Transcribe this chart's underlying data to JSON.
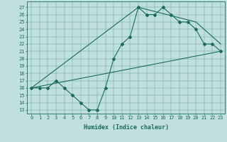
{
  "xlabel": "Humidex (Indice chaleur)",
  "background_color": "#c0e0e0",
  "line_color": "#1a6b5a",
  "xlim": [
    -0.5,
    23.5
  ],
  "ylim": [
    12.5,
    27.8
  ],
  "yticks": [
    13,
    14,
    15,
    16,
    17,
    18,
    19,
    20,
    21,
    22,
    23,
    24,
    25,
    26,
    27
  ],
  "xticks": [
    0,
    1,
    2,
    3,
    4,
    5,
    6,
    7,
    8,
    9,
    10,
    11,
    12,
    13,
    14,
    15,
    16,
    17,
    18,
    19,
    20,
    21,
    22,
    23
  ],
  "series1_x": [
    0,
    1,
    2,
    3,
    4,
    5,
    6,
    7,
    8,
    9,
    10,
    11,
    12,
    13,
    14,
    15,
    16,
    17,
    18,
    19,
    20,
    21,
    22,
    23
  ],
  "series1_y": [
    16,
    16,
    16,
    17,
    16,
    15,
    14,
    13,
    13,
    16,
    20,
    22,
    23,
    27,
    26,
    26,
    27,
    26,
    25,
    25,
    24,
    22,
    22,
    21
  ],
  "series2_x": [
    0,
    23
  ],
  "series2_y": [
    16,
    21
  ],
  "series3_x": [
    0,
    13,
    20,
    23
  ],
  "series3_y": [
    16,
    27,
    25,
    22
  ],
  "tick_fontsize": 5,
  "xlabel_fontsize": 6,
  "linewidth": 0.8,
  "markersize": 2.0
}
